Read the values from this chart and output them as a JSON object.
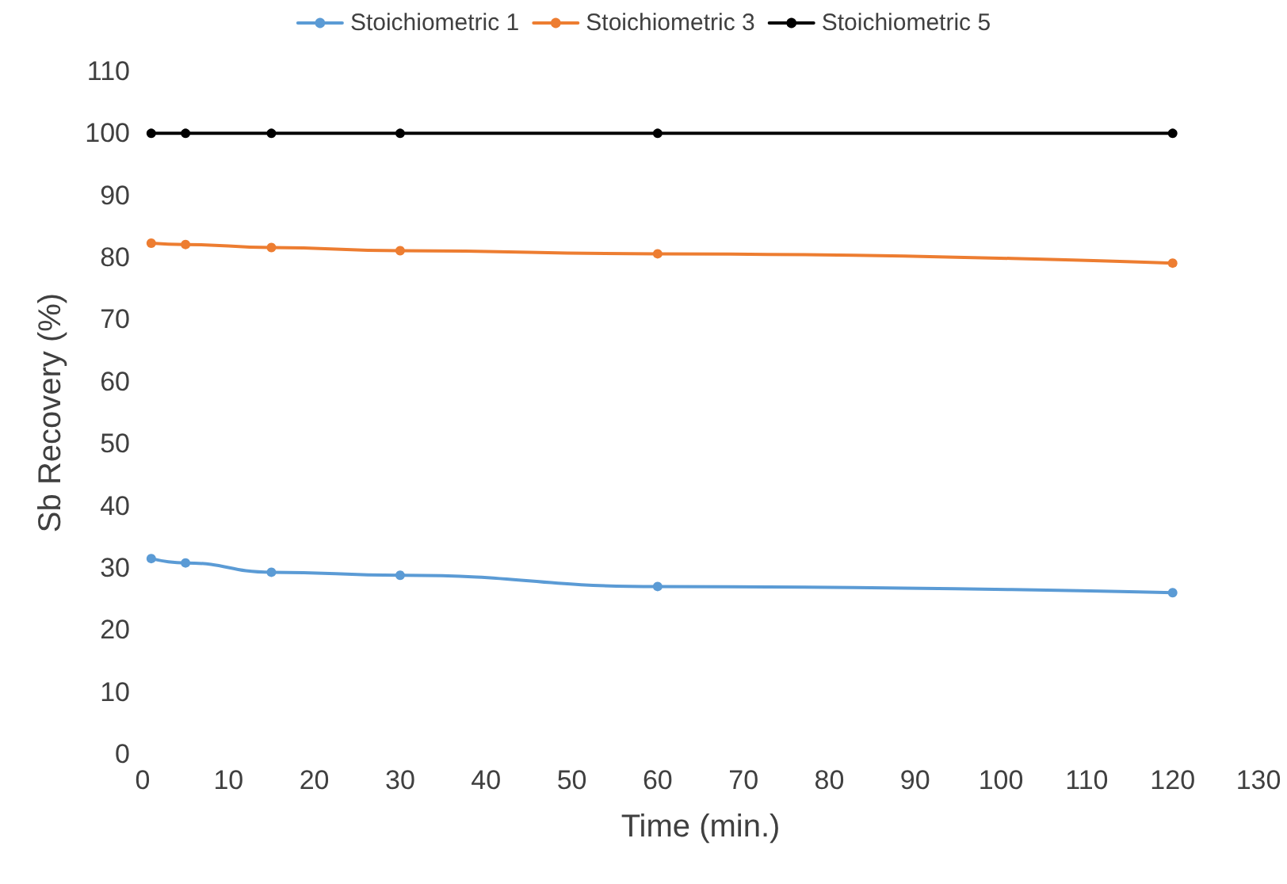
{
  "chart_data": {
    "type": "line",
    "xlabel": "Time (min.)",
    "ylabel": "Sb Recovery (%)",
    "x": [
      1,
      5,
      15,
      30,
      60,
      120
    ],
    "series": [
      {
        "name": "Stoichiometric 1",
        "color": "#5b9bd5",
        "values": [
          31.5,
          30.8,
          29.3,
          28.8,
          27.0,
          26.0
        ]
      },
      {
        "name": "Stoichiometric 3",
        "color": "#ed7d31",
        "values": [
          82.3,
          82.1,
          81.6,
          81.1,
          80.6,
          79.1
        ]
      },
      {
        "name": "Stoichiometric 5",
        "color": "#000000",
        "values": [
          100,
          100,
          100,
          100,
          100,
          100
        ]
      }
    ],
    "xlim": [
      0,
      130
    ],
    "xticks": [
      0,
      10,
      20,
      30,
      40,
      50,
      60,
      70,
      80,
      90,
      100,
      110,
      120,
      130
    ],
    "ylim": [
      0,
      110
    ],
    "yticks": [
      0,
      10,
      20,
      30,
      40,
      50,
      60,
      70,
      80,
      90,
      100,
      110
    ],
    "grid": false,
    "legend": "top",
    "marker": "circle",
    "line_style": "solid"
  }
}
